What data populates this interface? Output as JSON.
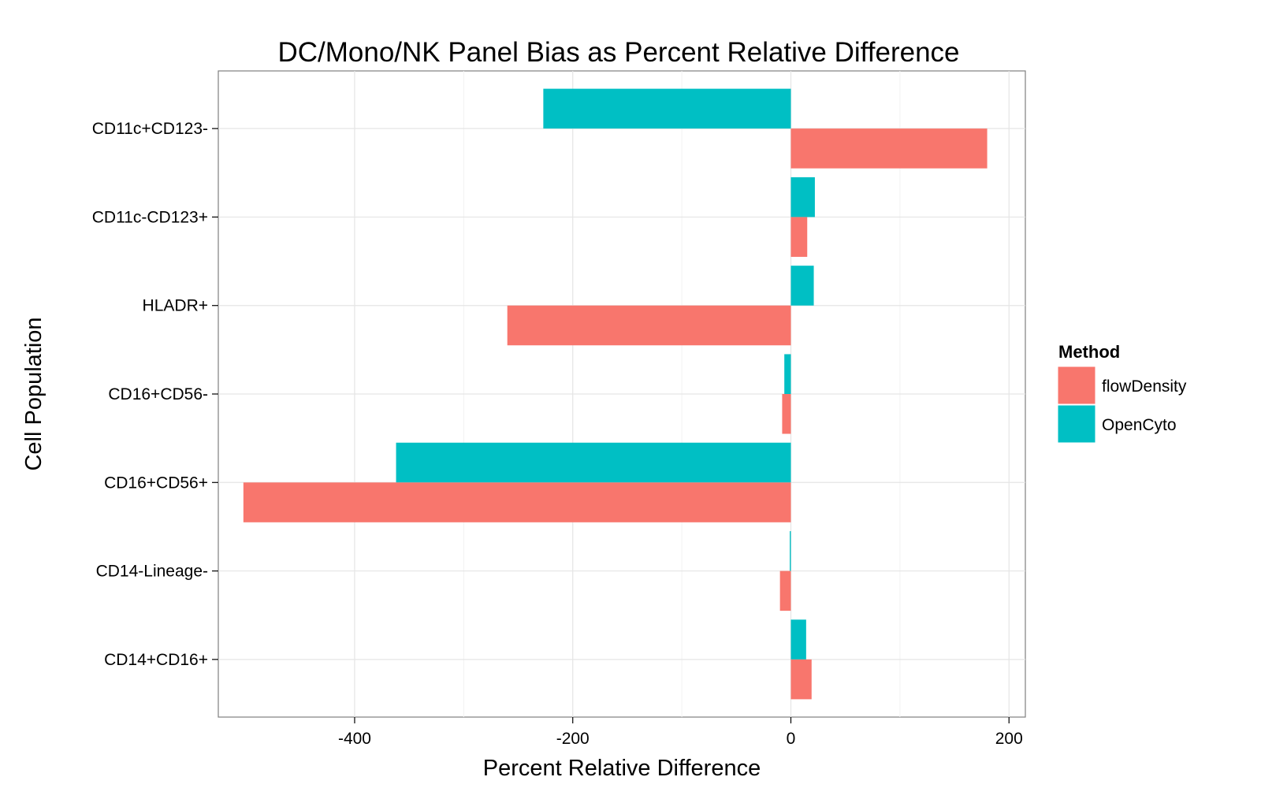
{
  "chart_data": {
    "type": "bar",
    "orientation": "horizontal",
    "title": "DC/Mono/NK Panel Bias as Percent Relative Difference",
    "xlabel": "Percent Relative Difference",
    "ylabel": "Cell Population",
    "xlim": [
      -525,
      215
    ],
    "xticks": [
      -400,
      -200,
      0,
      200
    ],
    "grid": true,
    "legend_title": "Method",
    "legend_position": "right",
    "categories": [
      "CD11c+CD123-",
      "CD11c-CD123+",
      "HLADR+",
      "CD16+CD56-",
      "CD16+CD56+",
      "CD14-Lineage-",
      "CD14+CD16+"
    ],
    "series": [
      {
        "name": "flowDensity",
        "color": "#F8766D",
        "values": [
          180,
          15,
          -260,
          -8,
          -502,
          -10,
          19
        ]
      },
      {
        "name": "OpenCyto",
        "color": "#00BFC4",
        "values": [
          -227,
          22,
          21,
          -6,
          -362,
          -1,
          14
        ]
      }
    ]
  }
}
